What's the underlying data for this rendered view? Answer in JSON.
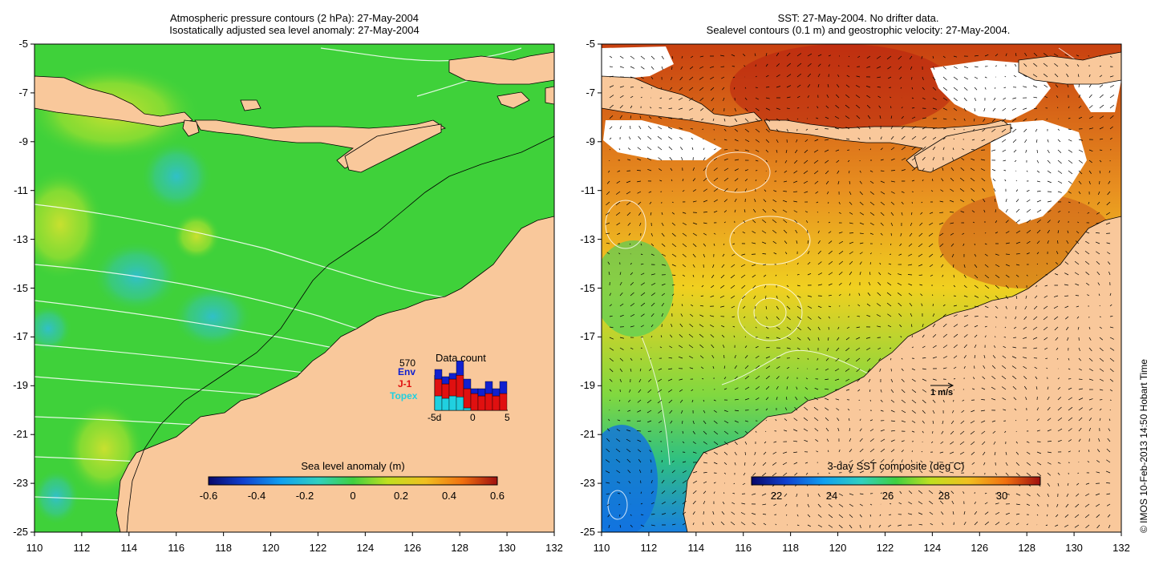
{
  "left_panel": {
    "title_line1": "Atmospheric pressure contours (2 hPa): 27-May-2004",
    "title_line2": "Isostatically adjusted sea level anomaly: 27-May-2004",
    "colorbar": {
      "label": "Sea level anomaly (m)",
      "ticks": [
        "-0.6",
        "-0.4",
        "-0.2",
        "0",
        "0.2",
        "0.4",
        "0.6"
      ]
    },
    "inset": {
      "title": "Data count",
      "max_count": "570",
      "legend": [
        {
          "label": "Env",
          "color": "#1020d0"
        },
        {
          "label": "J-1",
          "color": "#e01010"
        },
        {
          "label": "Topex",
          "color": "#20d0e0"
        }
      ],
      "x_ticks": [
        "-5d",
        "0",
        "5"
      ],
      "bars": [
        {
          "topex": 0.3,
          "j1": 0.35,
          "env": 0.2
        },
        {
          "topex": 0.25,
          "j1": 0.3,
          "env": 0.15
        },
        {
          "topex": 0.3,
          "j1": 0.35,
          "env": 0.12
        },
        {
          "topex": 0.28,
          "j1": 0.45,
          "env": 0.3
        },
        {
          "topex": 0.05,
          "j1": 0.4,
          "env": 0.2
        },
        {
          "topex": 0.0,
          "j1": 0.35,
          "env": 0.1
        },
        {
          "topex": 0.0,
          "j1": 0.3,
          "env": 0.15
        },
        {
          "topex": 0.0,
          "j1": 0.35,
          "env": 0.25
        },
        {
          "topex": 0.0,
          "j1": 0.3,
          "env": 0.15
        },
        {
          "topex": 0.0,
          "j1": 0.35,
          "env": 0.25
        }
      ]
    }
  },
  "right_panel": {
    "title_line1": "SST: 27-May-2004. No drifter data.",
    "title_line2": "Sealevel contours (0.1 m) and geostrophic velocity: 27-May-2004.",
    "colorbar": {
      "label": "3-day SST composite (deg C)",
      "ticks": [
        "22",
        "24",
        "26",
        "28",
        "30"
      ]
    },
    "velocity_scale_label": "1 m/s"
  },
  "axes": {
    "lat_ticks": [
      "-5",
      "-7",
      "-9",
      "-11",
      "-13",
      "-15",
      "-17",
      "-19",
      "-21",
      "-23",
      "-25"
    ],
    "lon_ticks": [
      "110",
      "112",
      "114",
      "116",
      "118",
      "120",
      "122",
      "124",
      "126",
      "128",
      "130",
      "132"
    ]
  },
  "credit": "© IMOS 10-Feb-2013 14:50 Hobart Time",
  "colors": {
    "land": "#f9c89b",
    "sla_background": "#3fd13a",
    "sst_background": "#f0a020"
  }
}
